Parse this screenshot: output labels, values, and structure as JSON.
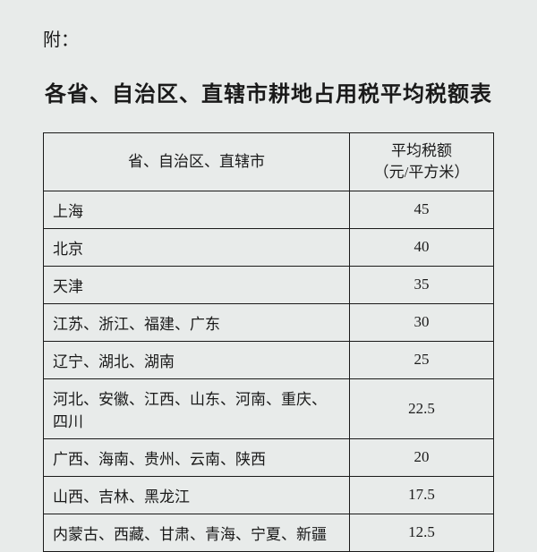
{
  "prefix": "附：",
  "title": "各省、自治区、直辖市耕地占用税平均税额表",
  "table": {
    "headers": {
      "region": "省、自治区、直辖市",
      "rate": "平均税额\n（元/平方米）"
    },
    "rows": [
      {
        "region": "上海",
        "rate": "45"
      },
      {
        "region": "北京",
        "rate": "40"
      },
      {
        "region": "天津",
        "rate": "35"
      },
      {
        "region": "江苏、浙江、福建、广东",
        "rate": "30"
      },
      {
        "region": "辽宁、湖北、湖南",
        "rate": "25"
      },
      {
        "region": "河北、安徽、江西、山东、河南、重庆、四川",
        "rate": "22.5"
      },
      {
        "region": "广西、海南、贵州、云南、陕西",
        "rate": "20"
      },
      {
        "region": "山西、吉林、黑龙江",
        "rate": "17.5"
      },
      {
        "region": "内蒙古、西藏、甘肃、青海、宁夏、新疆",
        "rate": "12.5"
      }
    ]
  }
}
